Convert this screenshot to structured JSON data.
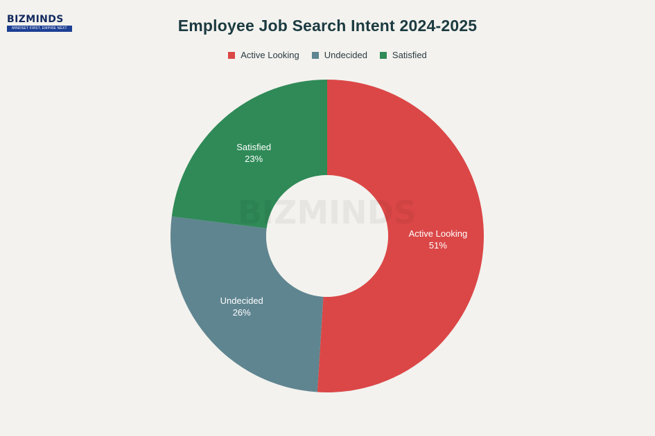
{
  "logo": {
    "text": "BIZMINDS",
    "tagline": "MINDSET FIRST, EMPIRE NEXT"
  },
  "chart_data": {
    "type": "pie",
    "variant": "donut",
    "title": "Employee Job Search Intent 2024-2025",
    "legend_position": "top-center",
    "slices": [
      {
        "label": "Active Looking",
        "value": 51,
        "display": "51%",
        "color": "#db4747"
      },
      {
        "label": "Undecided",
        "value": 26,
        "display": "26%",
        "color": "#5f8590"
      },
      {
        "label": "Satisfied",
        "value": 23,
        "display": "23%",
        "color": "#2f8a57"
      }
    ]
  }
}
